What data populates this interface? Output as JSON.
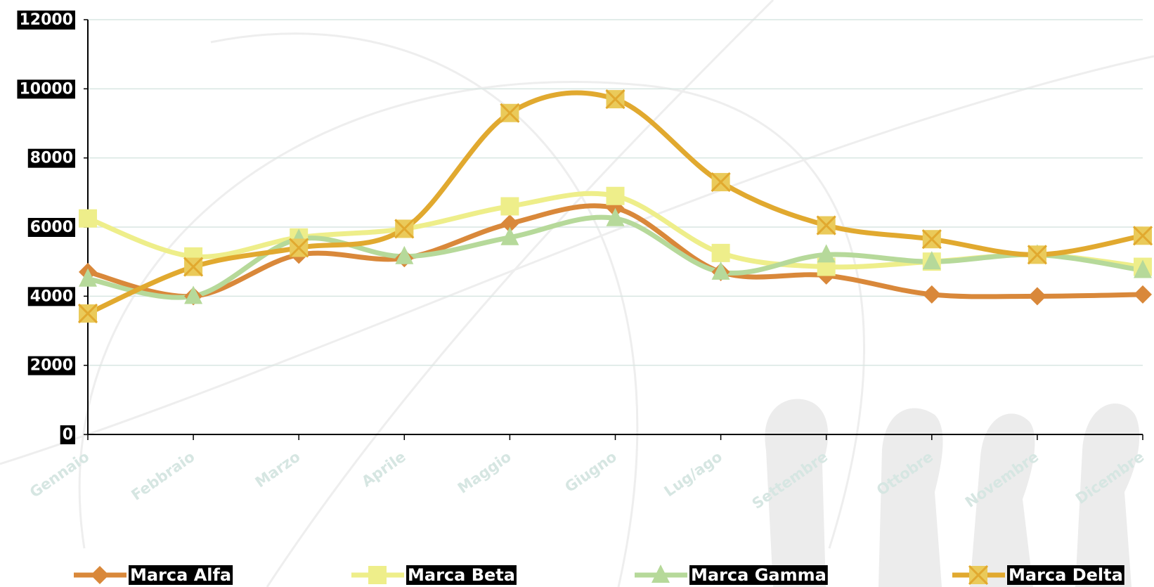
{
  "chart_data": {
    "type": "line",
    "categories": [
      "Gennaio",
      "Febbraio",
      "Marzo",
      "Aprile",
      "Maggio",
      "Giugno",
      "Lug/ago",
      "Settembre",
      "Ottobre",
      "Novembre",
      "Dicembre"
    ],
    "series": [
      {
        "name": "Marca Alfa",
        "color": "#d9883a",
        "marker": "diamond",
        "values": [
          4700,
          4000,
          5200,
          5100,
          6100,
          6550,
          4700,
          4600,
          4050,
          4000,
          4050
        ]
      },
      {
        "name": "Marca Beta",
        "color": "#eeee8a",
        "marker": "square",
        "values": [
          6250,
          5150,
          5700,
          5950,
          6600,
          6900,
          5250,
          4850,
          5000,
          5200,
          4850
        ]
      },
      {
        "name": "Marca Gamma",
        "color": "#b6d99a",
        "marker": "triangle",
        "values": [
          4500,
          4000,
          5650,
          5150,
          5700,
          6250,
          4700,
          5200,
          5000,
          5200,
          4750
        ]
      },
      {
        "name": "Marca Delta",
        "color": "#e1a92f",
        "marker": "x-square",
        "values": [
          3500,
          4850,
          5400,
          5950,
          9300,
          9700,
          7300,
          6050,
          5650,
          5200,
          5750
        ]
      }
    ],
    "ylim": [
      0,
      12000
    ],
    "yticks": [
      0,
      2000,
      4000,
      6000,
      8000,
      10000,
      12000
    ],
    "grid": true
  }
}
